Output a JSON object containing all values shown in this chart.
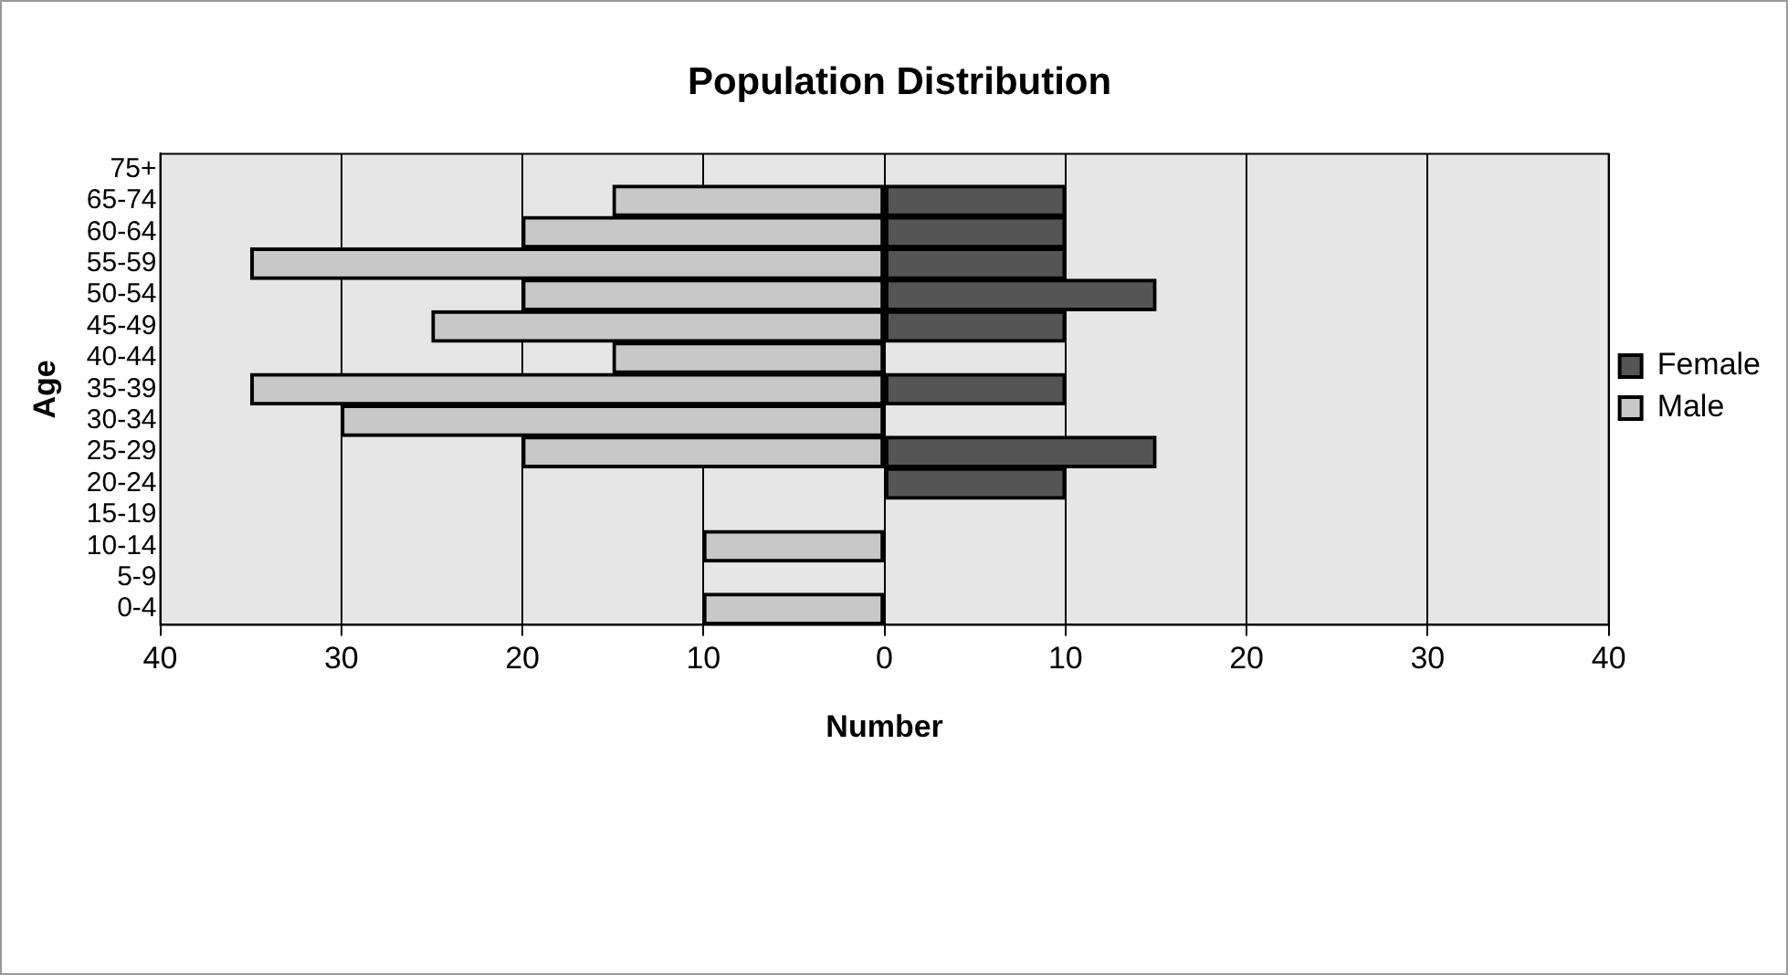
{
  "chart_data": {
    "type": "bar",
    "orientation": "horizontal",
    "stacked": true,
    "title": "Population Distribution",
    "xlabel": "Number",
    "ylabel": "Age",
    "categories": [
      "75+",
      "65-74",
      "60-64",
      "55-59",
      "50-54",
      "45-49",
      "40-44",
      "35-39",
      "30-34",
      "25-29",
      "20-24",
      "15-19",
      "10-14",
      "5-9",
      "0-4"
    ],
    "series": [
      {
        "name": "Female",
        "color": "#555555",
        "values": [
          0,
          10,
          10,
          10,
          15,
          10,
          0,
          10,
          0,
          15,
          10,
          0,
          0,
          0,
          0
        ]
      },
      {
        "name": "Male",
        "color": "#c8c8c8",
        "values": [
          0,
          -15,
          -20,
          -35,
          -20,
          -25,
          -15,
          -35,
          -30,
          -20,
          0,
          0,
          -10,
          0,
          -10
        ]
      }
    ],
    "xlim": [
      -40,
      40
    ],
    "xticks": [
      {
        "value": -40,
        "label": "40"
      },
      {
        "value": -30,
        "label": "30"
      },
      {
        "value": -20,
        "label": "20"
      },
      {
        "value": -10,
        "label": "10"
      },
      0,
      10,
      20,
      30,
      40
    ],
    "grid": "x",
    "legend": "right"
  }
}
